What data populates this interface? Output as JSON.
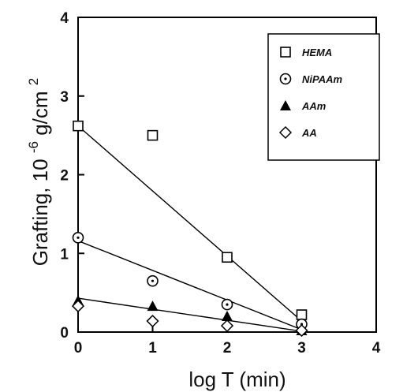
{
  "chart_data": {
    "type": "scatter",
    "xlabel": "log T (min)",
    "ylabel_main": "Grafting,  10",
    "ylabel_exp1": "-6",
    "ylabel_unit": "g/cm",
    "ylabel_exp2": "2",
    "xlim": [
      0,
      4
    ],
    "ylim": [
      0,
      4
    ],
    "xticks": [
      "0",
      "1",
      "2",
      "3",
      "4"
    ],
    "yticks": [
      "0",
      "1",
      "2",
      "3",
      "4"
    ],
    "grid": false,
    "legend_position": "top-right",
    "series": [
      {
        "name": "HEMA",
        "marker": "square-open",
        "x": [
          0,
          1,
          2,
          3
        ],
        "y": [
          2.62,
          2.5,
          0.95,
          0.22
        ],
        "fit": [
          [
            0,
            2.62
          ],
          [
            3,
            0.14
          ]
        ]
      },
      {
        "name": "NiPAAm",
        "marker": "circle-dot",
        "x": [
          0,
          1,
          2,
          3
        ],
        "y": [
          1.2,
          0.65,
          0.35,
          0.1
        ],
        "fit": [
          [
            0,
            1.16
          ],
          [
            3,
            0.03
          ]
        ]
      },
      {
        "name": "AAm",
        "marker": "triangle-filled",
        "x": [
          0,
          1,
          2,
          3
        ],
        "y": [
          0.4,
          0.33,
          0.2,
          0.02
        ],
        "fit": [
          [
            0,
            0.43
          ],
          [
            3,
            0.01
          ]
        ]
      },
      {
        "name": "AA",
        "marker": "diamond-open",
        "x": [
          0,
          1,
          2,
          3
        ],
        "y": [
          0.33,
          0.14,
          0.08,
          0.02
        ],
        "fit": null
      }
    ]
  }
}
